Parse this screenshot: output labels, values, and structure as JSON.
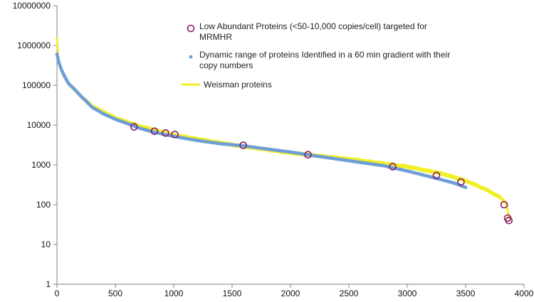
{
  "chart_data": {
    "type": "scatter",
    "title": "",
    "xlabel": "",
    "ylabel": "",
    "xlim": [
      0,
      4000
    ],
    "ylim": [
      1,
      10000000
    ],
    "yscale": "log",
    "x_ticks": [
      0,
      500,
      1000,
      1500,
      2000,
      2500,
      3000,
      3500,
      4000
    ],
    "x_tick_labels": [
      "0",
      "500",
      "1000",
      "1500",
      "2000",
      "2500",
      "3000",
      "3500",
      "4000"
    ],
    "y_ticks": [
      1,
      10,
      100,
      1000,
      10000,
      100000,
      1000000,
      10000000
    ],
    "y_tick_labels": [
      "1",
      "10",
      "100",
      "1000",
      "10000",
      "100000",
      "1000000",
      "10000000"
    ],
    "grid": false,
    "legend_position": "top-right",
    "series": [
      {
        "name": "Low Abundant Proteins (<50-10,000 copies/cell) targeted for MRMHR",
        "marker": "open-circle",
        "color": "#8b1a6b",
        "x": [
          660,
          835,
          930,
          1010,
          1595,
          2150,
          2875,
          3250,
          3460,
          3830,
          3860,
          3870
        ],
        "y": [
          9000,
          7000,
          6300,
          5800,
          3100,
          1800,
          900,
          540,
          370,
          100,
          46,
          40
        ]
      },
      {
        "name": "Dynamic range of proteins Identified in a 60 min  gradient with their copy numbers",
        "marker": "dot",
        "color": "#6f9fd8",
        "x": [
          0,
          10,
          20,
          40,
          60,
          80,
          100,
          150,
          200,
          250,
          300,
          400,
          500,
          600,
          700,
          800,
          900,
          1000,
          1200,
          1400,
          1600,
          1800,
          2000,
          2200,
          2400,
          2600,
          2800,
          3000,
          3200,
          3400,
          3500
        ],
        "y": [
          600000,
          450000,
          350000,
          240000,
          180000,
          140000,
          110000,
          80000,
          55000,
          40000,
          28000,
          19000,
          14000,
          11000,
          8500,
          7000,
          6000,
          5200,
          4100,
          3400,
          3000,
          2500,
          2100,
          1700,
          1400,
          1150,
          950,
          700,
          500,
          350,
          270
        ]
      },
      {
        "name": "Weisman proteins",
        "marker": "line",
        "color": "#f0f026",
        "x": [
          0,
          5,
          10,
          20,
          40,
          60,
          100,
          200,
          300,
          500,
          700,
          1000,
          1500,
          2000,
          2500,
          3000,
          3300,
          3500,
          3600,
          3700,
          3750,
          3800,
          3830,
          3850,
          3860,
          3870,
          3875
        ],
        "y": [
          1500000,
          900000,
          600000,
          350000,
          230000,
          170000,
          110000,
          55000,
          30000,
          15000,
          9500,
          5600,
          3200,
          2000,
          1400,
          900,
          600,
          400,
          300,
          220,
          180,
          150,
          120,
          100,
          70,
          50,
          42
        ]
      }
    ]
  }
}
